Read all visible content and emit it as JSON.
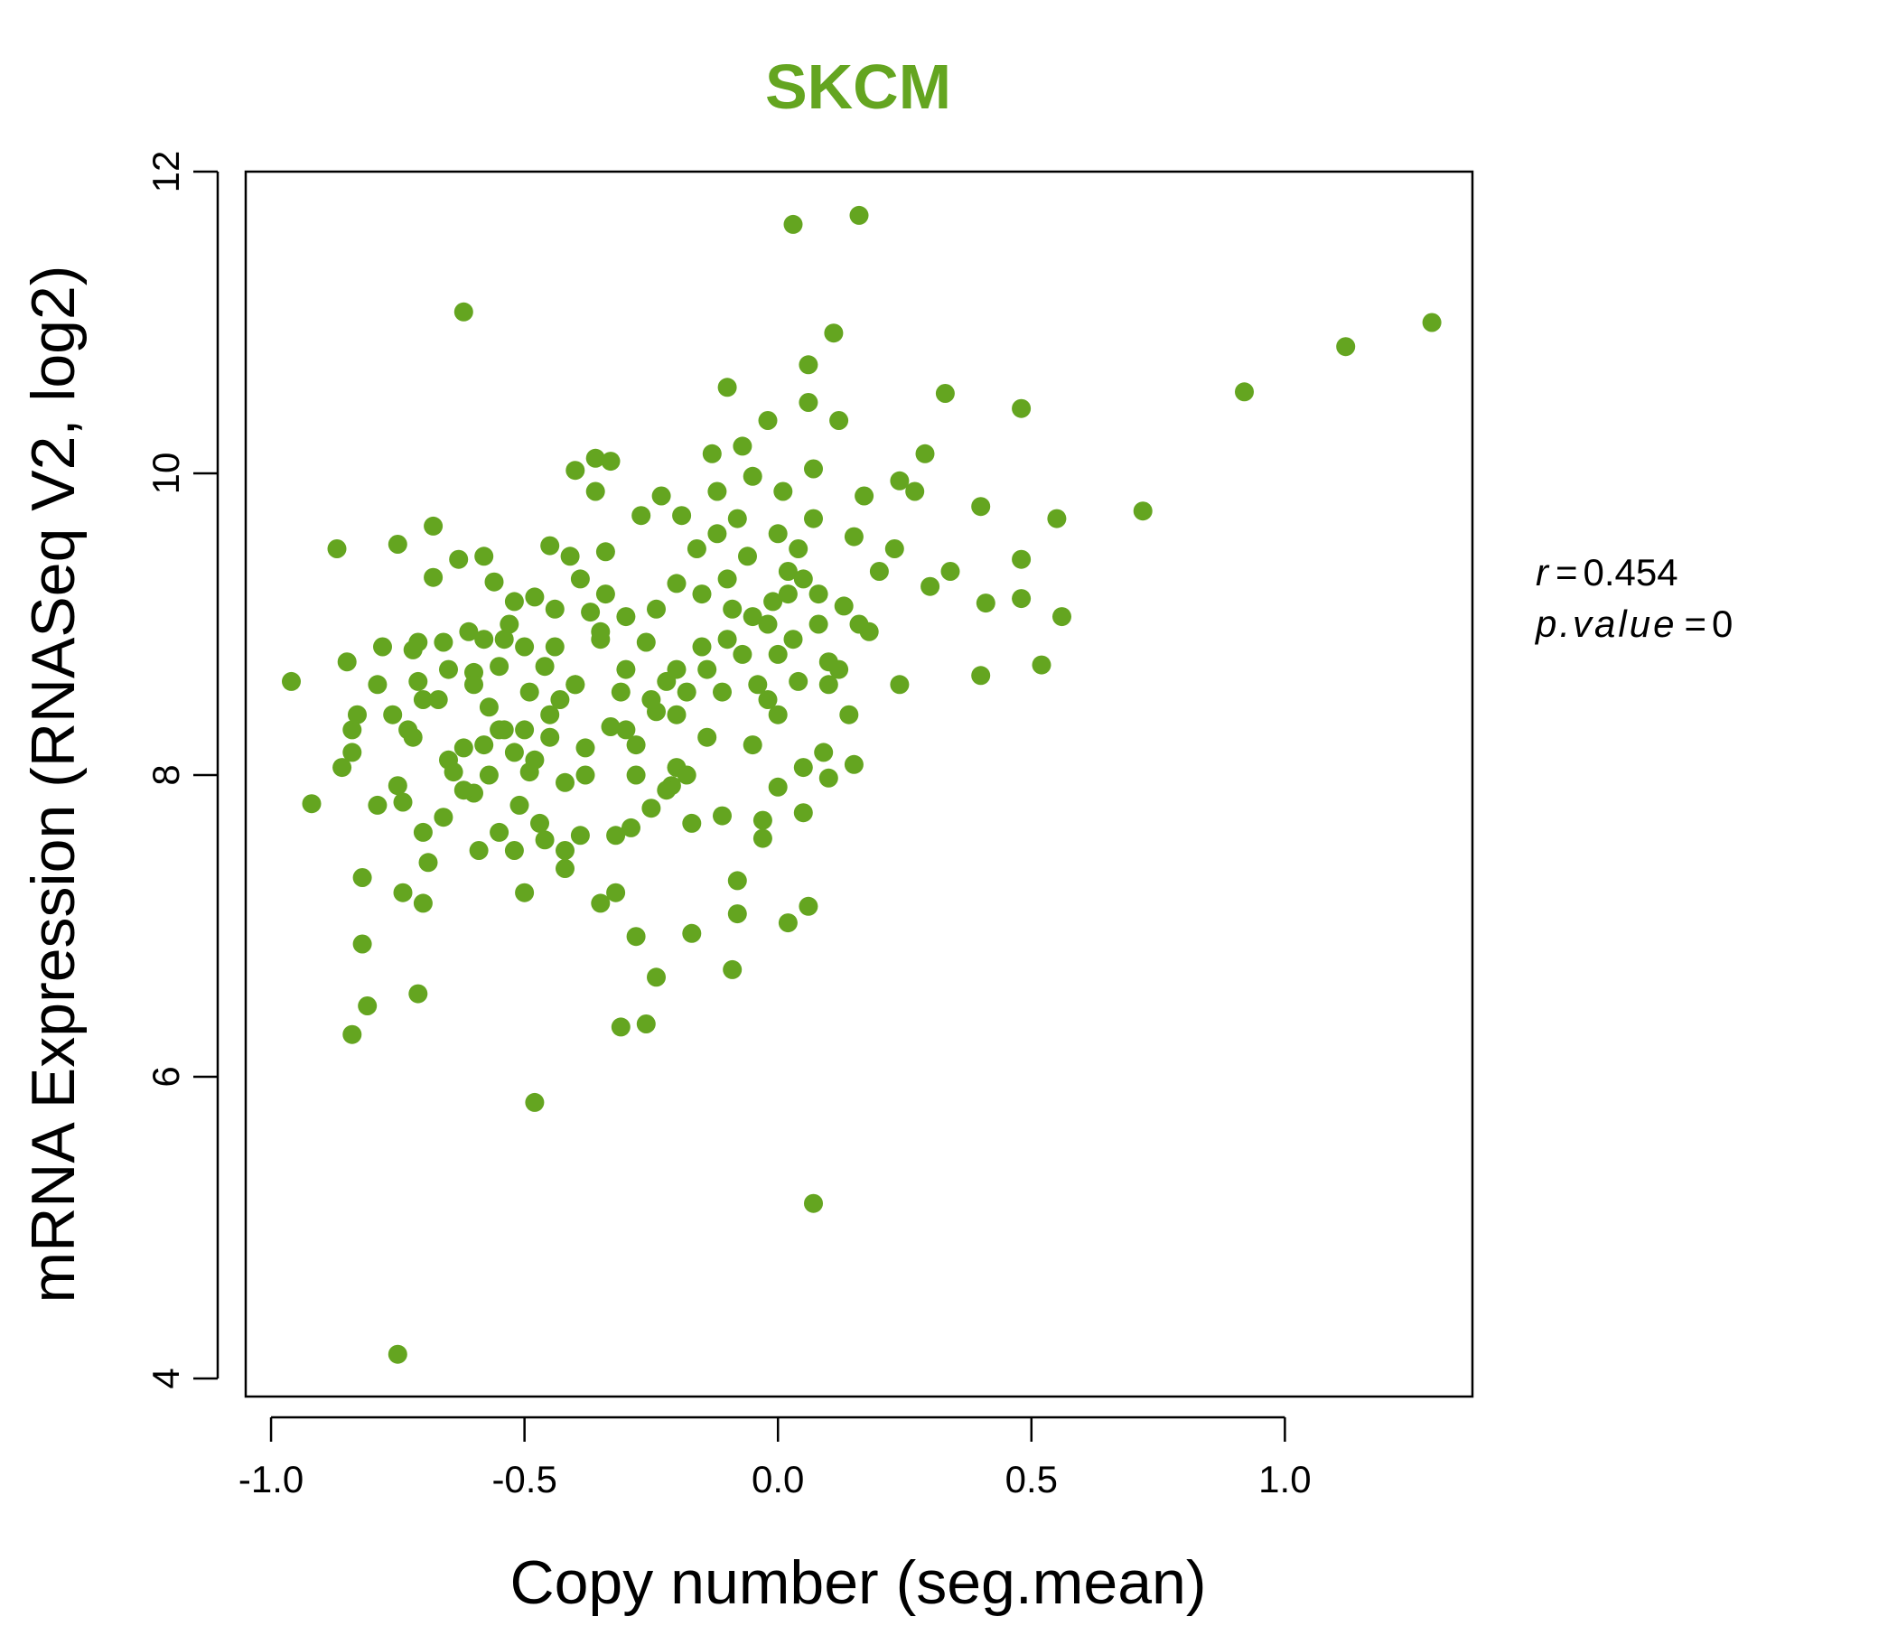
{
  "chart_data": {
    "type": "scatter",
    "title": "SKCM",
    "xlabel": "Copy number (seg.mean)",
    "ylabel": "mRNA Expression (RNASeq V2, log2)",
    "xlim": [
      -1.05,
      1.37
    ],
    "ylim": [
      3.88,
      12.0
    ],
    "x_ticks": [
      -1.0,
      -0.5,
      0.0,
      0.5,
      1.0
    ],
    "x_tick_labels": [
      "-1.0",
      "-0.5",
      "0.0",
      "0.5",
      "1.0"
    ],
    "y_ticks": [
      4,
      6,
      8,
      10,
      12
    ],
    "y_tick_labels": [
      "4",
      "6",
      "8",
      "10",
      "12"
    ],
    "grid": false,
    "color": "#64A520",
    "stats": {
      "r_label": "r",
      "r_value": "0.454",
      "p_label": "p.value",
      "p_value": "0"
    },
    "points": [
      [
        -0.96,
        8.62
      ],
      [
        -0.92,
        7.81
      ],
      [
        -0.87,
        9.5
      ],
      [
        -0.85,
        8.75
      ],
      [
        -0.84,
        8.3
      ],
      [
        -0.83,
        8.4
      ],
      [
        -0.84,
        8.15
      ],
      [
        -0.86,
        8.05
      ],
      [
        -0.82,
        7.32
      ],
      [
        -0.82,
        6.88
      ],
      [
        -0.81,
        6.47
      ],
      [
        -0.84,
        6.28
      ],
      [
        -0.79,
        8.6
      ],
      [
        -0.79,
        7.8
      ],
      [
        -0.78,
        8.85
      ],
      [
        -0.76,
        8.4
      ],
      [
        -0.75,
        9.53
      ],
      [
        -0.75,
        7.93
      ],
      [
        -0.74,
        7.82
      ],
      [
        -0.73,
        8.3
      ],
      [
        -0.74,
        7.22
      ],
      [
        -0.72,
        8.83
      ],
      [
        -0.72,
        8.25
      ],
      [
        -0.71,
        8.88
      ],
      [
        -0.71,
        8.62
      ],
      [
        -0.7,
        7.62
      ],
      [
        -0.7,
        7.15
      ],
      [
        -0.71,
        6.55
      ],
      [
        -0.69,
        7.42
      ],
      [
        -0.68,
        9.65
      ],
      [
        -0.68,
        9.31
      ],
      [
        -0.67,
        8.5
      ],
      [
        -0.66,
        8.88
      ],
      [
        -0.66,
        7.72
      ],
      [
        -0.65,
        8.7
      ],
      [
        -0.64,
        8.02
      ],
      [
        -0.63,
        9.43
      ],
      [
        -0.62,
        11.07
      ],
      [
        -0.62,
        8.18
      ],
      [
        -0.61,
        8.95
      ],
      [
        -0.6,
        8.68
      ],
      [
        -0.6,
        7.88
      ],
      [
        -0.59,
        7.5
      ],
      [
        -0.58,
        9.45
      ],
      [
        -0.58,
        8.9
      ],
      [
        -0.57,
        8.45
      ],
      [
        -0.57,
        8.0
      ],
      [
        -0.56,
        9.28
      ],
      [
        -0.55,
        8.72
      ],
      [
        -0.55,
        7.62
      ],
      [
        -0.54,
        8.3
      ],
      [
        -0.53,
        9.0
      ],
      [
        -0.52,
        9.15
      ],
      [
        -0.52,
        8.15
      ],
      [
        -0.51,
        7.8
      ],
      [
        -0.5,
        8.85
      ],
      [
        -0.5,
        7.22
      ],
      [
        -0.49,
        8.55
      ],
      [
        -0.49,
        8.02
      ],
      [
        -0.48,
        9.18
      ],
      [
        -0.47,
        7.68
      ],
      [
        -0.46,
        7.57
      ],
      [
        -0.46,
        8.72
      ],
      [
        -0.45,
        9.52
      ],
      [
        -0.45,
        8.25
      ],
      [
        -0.44,
        8.85
      ],
      [
        -0.43,
        8.5
      ],
      [
        -0.42,
        7.95
      ],
      [
        -0.42,
        7.38
      ],
      [
        -0.41,
        9.45
      ],
      [
        -0.4,
        10.02
      ],
      [
        -0.4,
        8.6
      ],
      [
        -0.39,
        9.3
      ],
      [
        -0.39,
        7.6
      ],
      [
        -0.38,
        8.18
      ],
      [
        -0.37,
        9.08
      ],
      [
        -0.36,
        10.1
      ],
      [
        -0.36,
        9.88
      ],
      [
        -0.35,
        8.9
      ],
      [
        -0.35,
        7.15
      ],
      [
        -0.34,
        9.48
      ],
      [
        -0.33,
        8.32
      ],
      [
        -0.33,
        10.08
      ],
      [
        -0.32,
        7.22
      ],
      [
        -0.31,
        8.55
      ],
      [
        -0.31,
        6.33
      ],
      [
        -0.3,
        9.05
      ],
      [
        -0.29,
        7.65
      ],
      [
        -0.28,
        8.2
      ],
      [
        -0.28,
        6.93
      ],
      [
        -0.27,
        9.72
      ],
      [
        -0.26,
        8.88
      ],
      [
        -0.26,
        6.35
      ],
      [
        -0.25,
        7.78
      ],
      [
        -0.24,
        8.42
      ],
      [
        -0.24,
        6.66
      ],
      [
        -0.23,
        9.85
      ],
      [
        -0.22,
        8.62
      ],
      [
        -0.21,
        7.93
      ],
      [
        -0.2,
        9.27
      ],
      [
        -0.2,
        8.05
      ],
      [
        -0.19,
        9.72
      ],
      [
        -0.18,
        8.55
      ],
      [
        -0.17,
        7.68
      ],
      [
        -0.17,
        6.95
      ],
      [
        -0.16,
        9.5
      ],
      [
        -0.15,
        8.85
      ],
      [
        -0.14,
        8.25
      ],
      [
        -0.13,
        10.13
      ],
      [
        -0.12,
        9.88
      ],
      [
        -0.11,
        8.55
      ],
      [
        -0.11,
        7.73
      ],
      [
        -0.1,
        10.57
      ],
      [
        -0.09,
        9.1
      ],
      [
        -0.08,
        7.3
      ],
      [
        -0.08,
        7.08
      ],
      [
        -0.09,
        6.71
      ],
      [
        -0.07,
        10.18
      ],
      [
        -0.06,
        9.45
      ],
      [
        -0.05,
        9.98
      ],
      [
        -0.04,
        8.6
      ],
      [
        -0.03,
        7.58
      ],
      [
        -0.03,
        7.7
      ],
      [
        -0.02,
        10.35
      ],
      [
        -0.01,
        9.15
      ],
      [
        0.0,
        8.8
      ],
      [
        0.0,
        7.92
      ],
      [
        0.01,
        9.88
      ],
      [
        0.02,
        9.35
      ],
      [
        0.02,
        7.02
      ],
      [
        0.03,
        11.65
      ],
      [
        0.04,
        8.62
      ],
      [
        0.05,
        8.05
      ],
      [
        0.05,
        7.75
      ],
      [
        0.06,
        7.13
      ],
      [
        0.06,
        10.72
      ],
      [
        0.06,
        10.47
      ],
      [
        0.07,
        10.03
      ],
      [
        0.07,
        9.7
      ],
      [
        0.07,
        5.16
      ],
      [
        0.08,
        9.0
      ],
      [
        0.09,
        8.15
      ],
      [
        0.1,
        8.75
      ],
      [
        0.1,
        7.98
      ],
      [
        0.11,
        10.93
      ],
      [
        0.12,
        10.35
      ],
      [
        0.13,
        9.12
      ],
      [
        0.14,
        8.4
      ],
      [
        0.15,
        8.07
      ],
      [
        0.15,
        9.58
      ],
      [
        0.16,
        11.71
      ],
      [
        0.17,
        9.85
      ],
      [
        0.18,
        8.95
      ],
      [
        0.2,
        9.35
      ],
      [
        0.23,
        9.5
      ],
      [
        0.24,
        8.6
      ],
      [
        0.24,
        9.95
      ],
      [
        0.27,
        9.88
      ],
      [
        0.29,
        10.13
      ],
      [
        0.3,
        9.25
      ],
      [
        0.33,
        10.53
      ],
      [
        0.34,
        9.35
      ],
      [
        0.4,
        9.78
      ],
      [
        0.4,
        8.66
      ],
      [
        0.41,
        9.14
      ],
      [
        0.48,
        10.43
      ],
      [
        0.48,
        9.43
      ],
      [
        0.48,
        9.17
      ],
      [
        0.52,
        8.73
      ],
      [
        0.55,
        9.7
      ],
      [
        0.56,
        9.05
      ],
      [
        0.72,
        9.75
      ],
      [
        0.92,
        10.54
      ],
      [
        1.12,
        10.84
      ],
      [
        1.29,
        11.0
      ],
      [
        -0.75,
        4.16
      ],
      [
        -0.48,
        5.83
      ],
      [
        -0.1,
        9.3
      ],
      [
        -0.05,
        9.05
      ],
      [
        0.0,
        9.6
      ],
      [
        0.03,
        8.9
      ],
      [
        -0.02,
        9.0
      ],
      [
        0.05,
        9.3
      ],
      [
        -0.15,
        9.2
      ],
      [
        -0.2,
        8.7
      ],
      [
        -0.3,
        8.7
      ],
      [
        -0.35,
        8.95
      ],
      [
        -0.25,
        8.5
      ],
      [
        -0.45,
        8.4
      ],
      [
        -0.55,
        8.3
      ],
      [
        -0.6,
        8.6
      ],
      [
        -0.65,
        8.1
      ],
      [
        -0.7,
        8.5
      ],
      [
        -0.5,
        8.3
      ],
      [
        -0.4,
        8.6
      ],
      [
        -0.3,
        8.3
      ],
      [
        -0.2,
        8.4
      ],
      [
        -0.1,
        8.9
      ],
      [
        0.0,
        8.4
      ],
      [
        0.1,
        8.6
      ],
      [
        -0.05,
        8.2
      ],
      [
        0.02,
        9.2
      ],
      [
        -0.12,
        9.6
      ],
      [
        -0.08,
        9.7
      ],
      [
        0.04,
        9.5
      ],
      [
        -0.18,
        8.0
      ],
      [
        -0.28,
        8.0
      ],
      [
        -0.38,
        8.0
      ],
      [
        -0.48,
        8.1
      ],
      [
        -0.58,
        8.2
      ],
      [
        -0.62,
        7.9
      ],
      [
        -0.52,
        7.5
      ],
      [
        -0.42,
        7.5
      ],
      [
        -0.32,
        7.6
      ],
      [
        -0.22,
        7.9
      ],
      [
        -0.14,
        8.7
      ],
      [
        -0.24,
        9.1
      ],
      [
        -0.34,
        9.2
      ],
      [
        -0.44,
        9.1
      ],
      [
        -0.54,
        8.9
      ],
      [
        0.08,
        9.2
      ],
      [
        0.12,
        8.7
      ],
      [
        0.16,
        9.0
      ],
      [
        -0.02,
        8.5
      ],
      [
        -0.07,
        8.8
      ]
    ]
  }
}
